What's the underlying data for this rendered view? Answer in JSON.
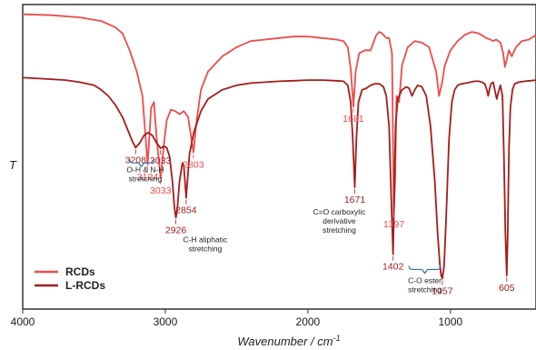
{
  "chart_data": {
    "type": "line",
    "title": "",
    "xlabel": "Wavenumber / cm",
    "xlabel_superscript": "-1",
    "ylabel": "T",
    "xlim": [
      4000,
      400
    ],
    "x_reversed": true,
    "grid": false,
    "x_ticks": [
      "4000",
      "3000",
      "2000",
      "1000"
    ],
    "legend": {
      "placement": "bottom-left"
    },
    "series": [
      {
        "name": "RCDs",
        "color": "#ee4b4b",
        "points": [
          [
            4000,
            0.968
          ],
          [
            3800,
            0.965
          ],
          [
            3600,
            0.958
          ],
          [
            3450,
            0.946
          ],
          [
            3350,
            0.925
          ],
          [
            3300,
            0.905
          ],
          [
            3250,
            0.85
          ],
          [
            3200,
            0.78
          ],
          [
            3160,
            0.7
          ],
          [
            3124,
            0.475
          ],
          [
            3100,
            0.66
          ],
          [
            3080,
            0.68
          ],
          [
            3060,
            0.56
          ],
          [
            3033,
            0.43
          ],
          [
            3010,
            0.54
          ],
          [
            2990,
            0.62
          ],
          [
            2960,
            0.655
          ],
          [
            2930,
            0.65
          ],
          [
            2900,
            0.64
          ],
          [
            2870,
            0.65
          ],
          [
            2840,
            0.63
          ],
          [
            2803,
            0.515
          ],
          [
            2780,
            0.62
          ],
          [
            2750,
            0.72
          ],
          [
            2700,
            0.78
          ],
          [
            2600,
            0.83
          ],
          [
            2500,
            0.86
          ],
          [
            2400,
            0.88
          ],
          [
            2300,
            0.885
          ],
          [
            2200,
            0.89
          ],
          [
            2100,
            0.895
          ],
          [
            2000,
            0.895
          ],
          [
            1900,
            0.89
          ],
          [
            1800,
            0.885
          ],
          [
            1750,
            0.88
          ],
          [
            1720,
            0.86
          ],
          [
            1700,
            0.79
          ],
          [
            1681,
            0.665
          ],
          [
            1665,
            0.78
          ],
          [
            1640,
            0.84
          ],
          [
            1600,
            0.85
          ],
          [
            1560,
            0.85
          ],
          [
            1520,
            0.9
          ],
          [
            1500,
            0.91
          ],
          [
            1480,
            0.905
          ],
          [
            1450,
            0.89
          ],
          [
            1430,
            0.89
          ],
          [
            1410,
            0.84
          ],
          [
            1397,
            0.32
          ],
          [
            1388,
            0.42
          ],
          [
            1378,
            0.7
          ],
          [
            1360,
            0.68
          ],
          [
            1340,
            0.8
          ],
          [
            1300,
            0.86
          ],
          [
            1250,
            0.88
          ],
          [
            1200,
            0.875
          ],
          [
            1150,
            0.86
          ],
          [
            1100,
            0.78
          ],
          [
            1080,
            0.7
          ],
          [
            1060,
            0.74
          ],
          [
            1040,
            0.8
          ],
          [
            1000,
            0.85
          ],
          [
            950,
            0.88
          ],
          [
            900,
            0.9
          ],
          [
            850,
            0.91
          ],
          [
            800,
            0.905
          ],
          [
            750,
            0.89
          ],
          [
            720,
            0.885
          ],
          [
            700,
            0.88
          ],
          [
            680,
            0.885
          ],
          [
            650,
            0.875
          ],
          [
            630,
            0.84
          ],
          [
            618,
            0.795
          ],
          [
            605,
            0.82
          ],
          [
            590,
            0.85
          ],
          [
            570,
            0.83
          ],
          [
            540,
            0.86
          ],
          [
            500,
            0.88
          ],
          [
            450,
            0.885
          ],
          [
            400,
            0.9
          ]
        ]
      },
      {
        "name": "L-RCDs",
        "color": "#a51c1c",
        "points": [
          [
            4000,
            0.76
          ],
          [
            3800,
            0.755
          ],
          [
            3700,
            0.752
          ],
          [
            3600,
            0.745
          ],
          [
            3500,
            0.735
          ],
          [
            3450,
            0.72
          ],
          [
            3400,
            0.7
          ],
          [
            3350,
            0.67
          ],
          [
            3300,
            0.63
          ],
          [
            3260,
            0.585
          ],
          [
            3230,
            0.55
          ],
          [
            3208,
            0.53
          ],
          [
            3180,
            0.545
          ],
          [
            3150,
            0.57
          ],
          [
            3120,
            0.58
          ],
          [
            3090,
            0.57
          ],
          [
            3060,
            0.545
          ],
          [
            3033,
            0.528
          ],
          [
            3010,
            0.535
          ],
          [
            2990,
            0.53
          ],
          [
            2970,
            0.5
          ],
          [
            2950,
            0.42
          ],
          [
            2935,
            0.33
          ],
          [
            2926,
            0.3
          ],
          [
            2915,
            0.335
          ],
          [
            2900,
            0.42
          ],
          [
            2880,
            0.48
          ],
          [
            2870,
            0.47
          ],
          [
            2862,
            0.42
          ],
          [
            2854,
            0.365
          ],
          [
            2845,
            0.42
          ],
          [
            2830,
            0.51
          ],
          [
            2800,
            0.58
          ],
          [
            2750,
            0.65
          ],
          [
            2700,
            0.69
          ],
          [
            2600,
            0.72
          ],
          [
            2500,
            0.735
          ],
          [
            2400,
            0.742
          ],
          [
            2300,
            0.745
          ],
          [
            2200,
            0.748
          ],
          [
            2100,
            0.75
          ],
          [
            2000,
            0.752
          ],
          [
            1900,
            0.752
          ],
          [
            1800,
            0.75
          ],
          [
            1750,
            0.748
          ],
          [
            1720,
            0.735
          ],
          [
            1700,
            0.68
          ],
          [
            1685,
            0.56
          ],
          [
            1671,
            0.4
          ],
          [
            1660,
            0.56
          ],
          [
            1645,
            0.68
          ],
          [
            1620,
            0.72
          ],
          [
            1590,
            0.725
          ],
          [
            1560,
            0.735
          ],
          [
            1530,
            0.74
          ],
          [
            1500,
            0.74
          ],
          [
            1470,
            0.73
          ],
          [
            1450,
            0.7
          ],
          [
            1430,
            0.6
          ],
          [
            1415,
            0.36
          ],
          [
            1402,
            0.18
          ],
          [
            1395,
            0.36
          ],
          [
            1385,
            0.6
          ],
          [
            1370,
            0.69
          ],
          [
            1340,
            0.72
          ],
          [
            1310,
            0.73
          ],
          [
            1290,
            0.725
          ],
          [
            1270,
            0.7
          ],
          [
            1250,
            0.72
          ],
          [
            1230,
            0.735
          ],
          [
            1200,
            0.73
          ],
          [
            1170,
            0.7
          ],
          [
            1140,
            0.6
          ],
          [
            1110,
            0.42
          ],
          [
            1090,
            0.25
          ],
          [
            1075,
            0.15
          ],
          [
            1065,
            0.11
          ],
          [
            1057,
            0.1
          ],
          [
            1045,
            0.14
          ],
          [
            1030,
            0.3
          ],
          [
            1010,
            0.56
          ],
          [
            990,
            0.68
          ],
          [
            970,
            0.72
          ],
          [
            950,
            0.735
          ],
          [
            920,
            0.74
          ],
          [
            890,
            0.742
          ],
          [
            860,
            0.745
          ],
          [
            830,
            0.748
          ],
          [
            800,
            0.748
          ],
          [
            780,
            0.745
          ],
          [
            760,
            0.74
          ],
          [
            745,
            0.72
          ],
          [
            735,
            0.7
          ],
          [
            725,
            0.725
          ],
          [
            715,
            0.74
          ],
          [
            700,
            0.745
          ],
          [
            685,
            0.71
          ],
          [
            675,
            0.69
          ],
          [
            665,
            0.71
          ],
          [
            650,
            0.735
          ],
          [
            635,
            0.7
          ],
          [
            625,
            0.5
          ],
          [
            615,
            0.25
          ],
          [
            605,
            0.11
          ],
          [
            598,
            0.25
          ],
          [
            590,
            0.52
          ],
          [
            580,
            0.66
          ],
          [
            565,
            0.72
          ],
          [
            550,
            0.74
          ],
          [
            520,
            0.745
          ],
          [
            480,
            0.748
          ],
          [
            440,
            0.75
          ],
          [
            400,
            0.752
          ]
        ]
      }
    ],
    "peak_labels": [
      {
        "text": "3124",
        "x": 3124,
        "y": 0.475,
        "series": 0
      },
      {
        "text": "3033",
        "x": 3033,
        "y": 0.43,
        "series": 0
      },
      {
        "text": "2803",
        "x": 2803,
        "y": 0.515,
        "series": 0
      },
      {
        "text": "1681",
        "x": 1681,
        "y": 0.665,
        "series": 0
      },
      {
        "text": "1397",
        "x": 1397,
        "y": 0.32,
        "series": 0
      },
      {
        "text": "3208",
        "x": 3208,
        "y": 0.53,
        "series": 1
      },
      {
        "text": "3033",
        "x": 3033,
        "y": 0.528,
        "series": 1
      },
      {
        "text": "2926",
        "x": 2926,
        "y": 0.3,
        "series": 1
      },
      {
        "text": "2854",
        "x": 2854,
        "y": 0.365,
        "series": 1
      },
      {
        "text": "1671",
        "x": 1671,
        "y": 0.4,
        "series": 1
      },
      {
        "text": "1402",
        "x": 1402,
        "y": 0.18,
        "series": 1
      },
      {
        "text": "1057",
        "x": 1057,
        "y": 0.1,
        "series": 1
      },
      {
        "text": "605",
        "x": 605,
        "y": 0.11,
        "series": 1
      }
    ],
    "annotations": [
      {
        "lines": [
          "O-H & N-H",
          "stretching"
        ],
        "x": 3140,
        "y": 0.45
      },
      {
        "lines": [
          "C-H aliphatic",
          "stretching"
        ],
        "x": 2720,
        "y": 0.22
      },
      {
        "lines": [
          "C=O carboxylic",
          "derivative",
          "stretching"
        ],
        "x": 1780,
        "y": 0.31
      },
      {
        "lines": [
          "C-O ester",
          "stretching"
        ],
        "x": 1180,
        "y": 0.085
      }
    ],
    "brackets": [
      {
        "x1": 3250,
        "x2": 3085,
        "y": 0.48
      },
      {
        "x1": 1290,
        "x2": 1070,
        "y": 0.13
      }
    ]
  }
}
